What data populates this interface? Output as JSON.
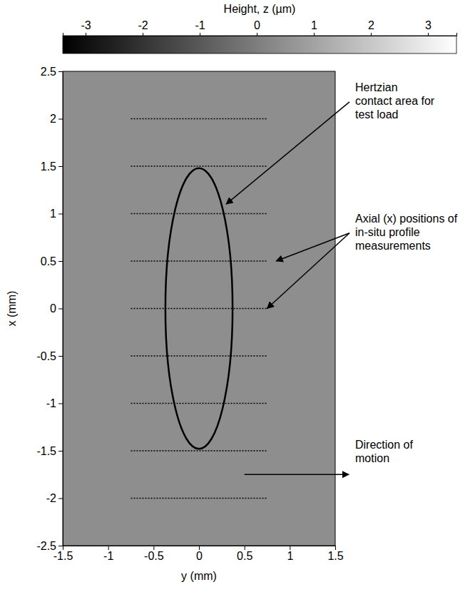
{
  "chart_data": {
    "type": "surface_map",
    "xlabel": "y (mm)",
    "ylabel": "x (mm)",
    "xlim": [
      -1.5,
      1.5
    ],
    "xticks": [
      -1.5,
      -1,
      -0.5,
      0,
      0.5,
      1,
      1.5
    ],
    "ylim": [
      -2.5,
      2.5
    ],
    "yticks": [
      -2.5,
      -2,
      -1.5,
      -1,
      -0.5,
      0,
      0.5,
      1,
      1.5,
      2,
      2.5
    ],
    "colorbar": {
      "label": "Height, z (µm)",
      "range": [
        -3.4,
        3.5
      ],
      "ticks": [
        -3,
        -2,
        -1,
        0,
        1,
        2,
        3
      ]
    },
    "profile_lines": {
      "x": [
        -2,
        -1.5,
        -1,
        -0.5,
        0,
        0.5,
        1,
        1.5,
        2
      ],
      "y_range": [
        -0.75,
        0.75
      ]
    },
    "contact_ellipse": {
      "center": [
        0,
        0
      ],
      "semi_axis_y": 0.37,
      "semi_axis_x": 1.48
    },
    "annotations": [
      {
        "text": "Hertzian contact area for test load",
        "points_to": [
          [
            0.3,
            1.1
          ]
        ]
      },
      {
        "text": "Axial (x) positions of in-situ profile measurements",
        "points_to": [
          [
            0.85,
            0.5
          ],
          [
            0.75,
            0
          ]
        ]
      },
      {
        "text": "Direction of motion",
        "arrow": {
          "from": [
            0.5,
            -1.75
          ],
          "to": [
            1.65,
            -1.75
          ]
        }
      }
    ]
  }
}
